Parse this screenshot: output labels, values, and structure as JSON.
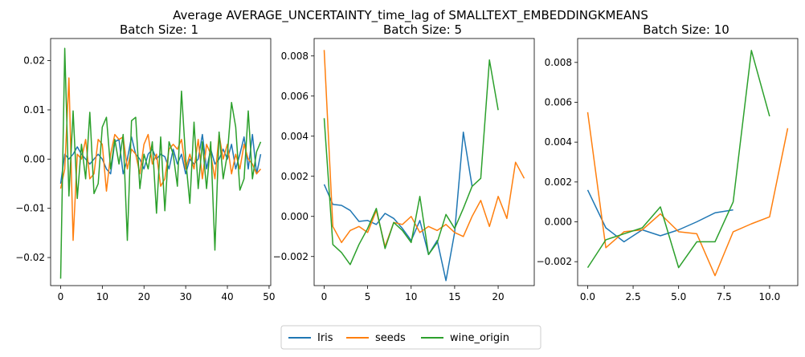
{
  "figure": {
    "suptitle": "Average AVERAGE_UNCERTAINTY_time_lag of SMALLTEXT_EMBEDDINGKMEANS"
  },
  "legend": {
    "placement": "bottom-center",
    "entries": [
      {
        "name": "Iris",
        "color": "#1f77b4"
      },
      {
        "name": "seeds",
        "color": "#ff7f0e"
      },
      {
        "name": "wine_origin",
        "color": "#2ca02c"
      }
    ]
  },
  "chart_data": [
    {
      "type": "line",
      "title": "Batch Size: 1",
      "xlabel": "",
      "ylabel": "",
      "xlim": [
        -2.4,
        50.4
      ],
      "ylim": [
        -0.0257,
        0.0245
      ],
      "xticks": [
        0,
        10,
        20,
        30,
        40,
        50
      ],
      "yticks": [
        -0.02,
        -0.01,
        0.0,
        0.01,
        0.02
      ],
      "xtick_labels": [
        "0",
        "10",
        "20",
        "30",
        "40",
        "50"
      ],
      "ytick_labels": [
        "−0.02",
        "−0.01",
        "0.00",
        "0.01",
        "0.02"
      ],
      "grid": false,
      "series": [
        {
          "name": "Iris",
          "color": "#1f77b4",
          "x": [
            0,
            1,
            2,
            3,
            4,
            5,
            6,
            7,
            8,
            9,
            10,
            11,
            12,
            13,
            14,
            15,
            16,
            17,
            18,
            19,
            20,
            21,
            22,
            23,
            24,
            25,
            26,
            27,
            28,
            29,
            30,
            31,
            32,
            33,
            34,
            35,
            36,
            37,
            38,
            39,
            40,
            41,
            42,
            43,
            44,
            45,
            46,
            47,
            48
          ],
          "values": [
            -0.005,
            0.001,
            0.0,
            0.001,
            0.0025,
            0.001,
            0.0,
            -0.001,
            0.0,
            0.001,
            0.0,
            -0.002,
            -0.003,
            0.0035,
            0.004,
            -0.003,
            0.0,
            0.0045,
            0.001,
            0.0,
            -0.002,
            0.001,
            0.002,
            0.0,
            0.001,
            0.0005,
            -0.002,
            0.002,
            -0.001,
            0.001,
            -0.003,
            0.0,
            -0.001,
            0.0,
            0.005,
            -0.002,
            0.002,
            -0.001,
            0.0,
            0.002,
            0.0,
            0.003,
            -0.002,
            0.001,
            0.0045,
            -0.002,
            0.005,
            -0.003,
            0.001
          ]
        },
        {
          "name": "seeds",
          "color": "#ff7f0e",
          "x": [
            0,
            1,
            2,
            3,
            4,
            5,
            6,
            7,
            8,
            9,
            10,
            11,
            12,
            13,
            14,
            15,
            16,
            17,
            18,
            19,
            20,
            21,
            22,
            23,
            24,
            25,
            26,
            27,
            28,
            29,
            30,
            31,
            32,
            33,
            34,
            35,
            36,
            37,
            38,
            39,
            40,
            41,
            42,
            43,
            44,
            45,
            46,
            47,
            48
          ],
          "values": [
            -0.006,
            -0.002,
            0.0165,
            -0.0165,
            0.001,
            0.0,
            0.004,
            -0.004,
            -0.003,
            0.004,
            0.003,
            -0.0065,
            0.001,
            0.005,
            0.004,
            0.0045,
            -0.002,
            0.002,
            0.001,
            -0.003,
            0.003,
            0.005,
            -0.001,
            0.001,
            -0.0055,
            -0.004,
            0.002,
            0.003,
            0.002,
            0.004,
            -0.002,
            0.001,
            -0.002,
            0.004,
            -0.004,
            0.003,
            0.001,
            -0.004,
            0.005,
            0.0,
            0.003,
            -0.003,
            0.001,
            -0.002,
            0.003,
            0.0,
            -0.001,
            -0.003,
            -0.002
          ]
        },
        {
          "name": "wine_origin",
          "color": "#2ca02c",
          "x": [
            0,
            1,
            2,
            3,
            4,
            5,
            6,
            7,
            8,
            9,
            10,
            11,
            12,
            13,
            14,
            15,
            16,
            17,
            18,
            19,
            20,
            21,
            22,
            23,
            24,
            25,
            26,
            27,
            28,
            29,
            30,
            31,
            32,
            33,
            34,
            35,
            36,
            37,
            38,
            39,
            40,
            41,
            42,
            43,
            44,
            45,
            46,
            47,
            48
          ],
          "values": [
            -0.0243,
            0.0225,
            -0.0075,
            0.0098,
            -0.008,
            0.003,
            -0.004,
            0.0095,
            -0.007,
            -0.005,
            0.0065,
            0.0085,
            -0.002,
            0.004,
            -0.001,
            0.005,
            -0.0165,
            0.0078,
            0.0085,
            -0.006,
            0.001,
            -0.002,
            0.0035,
            -0.011,
            0.0045,
            -0.0105,
            0.0035,
            0.001,
            -0.0055,
            0.0138,
            0.0,
            -0.009,
            0.0075,
            -0.006,
            0.0035,
            -0.006,
            0.0035,
            -0.0185,
            0.0055,
            -0.004,
            0.001,
            0.0115,
            0.0065,
            -0.0063,
            -0.004,
            0.0098,
            -0.004,
            0.0015,
            0.0035
          ]
        }
      ]
    },
    {
      "type": "line",
      "title": "Batch Size: 5",
      "xlabel": "",
      "ylabel": "",
      "xlim": [
        -1.15,
        24.15
      ],
      "ylim": [
        -0.00345,
        0.00887
      ],
      "xticks": [
        0,
        5,
        10,
        15,
        20
      ],
      "yticks": [
        -0.002,
        0.0,
        0.002,
        0.004,
        0.006,
        0.008
      ],
      "xtick_labels": [
        "0",
        "5",
        "10",
        "15",
        "20"
      ],
      "ytick_labels": [
        "−0.002",
        "0.000",
        "0.002",
        "0.004",
        "0.006",
        "0.008"
      ],
      "grid": false,
      "series": [
        {
          "name": "Iris",
          "color": "#1f77b4",
          "x": [
            0,
            1,
            2,
            3,
            4,
            5,
            6,
            7,
            8,
            9,
            10,
            11,
            12,
            13,
            14,
            15,
            16,
            17
          ],
          "values": [
            0.0016,
            0.0006,
            0.00055,
            0.0003,
            -0.00025,
            -0.0002,
            -0.0004,
            0.00015,
            -0.0001,
            -0.0006,
            -0.0012,
            -0.0002,
            -0.0019,
            -0.0012,
            -0.0032,
            -0.0008,
            0.0042,
            0.0015
          ]
        },
        {
          "name": "seeds",
          "color": "#ff7f0e",
          "x": [
            0,
            1,
            2,
            3,
            4,
            5,
            6,
            7,
            8,
            9,
            10,
            11,
            12,
            13,
            14,
            15,
            16,
            17,
            18,
            19,
            20,
            21,
            22,
            23
          ],
          "values": [
            0.0083,
            -0.0005,
            -0.0013,
            -0.0007,
            -0.0005,
            -0.0008,
            0.0003,
            -0.0015,
            -0.0003,
            -0.0004,
            0.0,
            -0.0008,
            -0.0005,
            -0.0007,
            -0.0004,
            -0.0008,
            -0.001,
            0.0,
            0.0008,
            -0.0005,
            0.001,
            -0.0001,
            0.0027,
            0.0019
          ]
        },
        {
          "name": "wine_origin",
          "color": "#2ca02c",
          "x": [
            0,
            1,
            2,
            3,
            4,
            5,
            6,
            7,
            8,
            9,
            10,
            11,
            12,
            13,
            14,
            15,
            16,
            17,
            18,
            19,
            20
          ],
          "values": [
            0.0049,
            -0.0014,
            -0.0018,
            -0.0024,
            -0.0014,
            -0.0006,
            0.0004,
            -0.0016,
            -0.0003,
            -0.0007,
            -0.0013,
            0.001,
            -0.0019,
            -0.0013,
            0.0001,
            -0.0006,
            0.0004,
            0.0015,
            0.0019,
            0.0078,
            0.0053
          ]
        }
      ]
    },
    {
      "type": "line",
      "title": "Batch Size: 10",
      "xlabel": "",
      "ylabel": "",
      "xlim": [
        -0.55,
        11.55
      ],
      "ylim": [
        -0.0032,
        0.0092
      ],
      "xticks": [
        0,
        2.5,
        5.0,
        7.5,
        10.0
      ],
      "yticks": [
        -0.002,
        0.0,
        0.002,
        0.004,
        0.006,
        0.008
      ],
      "xtick_labels": [
        "0.0",
        "2.5",
        "5.0",
        "7.5",
        "10.0"
      ],
      "ytick_labels": [
        "−0.002",
        "0.000",
        "0.002",
        "0.004",
        "0.006",
        "0.008"
      ],
      "grid": false,
      "series": [
        {
          "name": "Iris",
          "color": "#1f77b4",
          "x": [
            0,
            1,
            2,
            3,
            4,
            5,
            6,
            7,
            8
          ],
          "values": [
            0.0016,
            -0.0003,
            -0.001,
            -0.0004,
            -0.0007,
            -0.0004,
            0.0,
            0.00045,
            0.0006
          ]
        },
        {
          "name": "seeds",
          "color": "#ff7f0e",
          "x": [
            0,
            1,
            2,
            3,
            4,
            5,
            6,
            7,
            8,
            9,
            10,
            11
          ],
          "values": [
            0.0055,
            -0.0013,
            -0.0005,
            -0.0004,
            0.0004,
            -0.0005,
            -0.0006,
            -0.0027,
            -0.0005,
            -0.0001,
            0.00025,
            0.0047
          ]
        },
        {
          "name": "wine_origin",
          "color": "#2ca02c",
          "x": [
            0,
            1,
            2,
            3,
            4,
            5,
            6,
            7,
            8,
            9,
            10
          ],
          "values": [
            -0.0023,
            -0.0009,
            -0.0006,
            -0.0003,
            0.00075,
            -0.0023,
            -0.001,
            -0.001,
            0.001,
            0.0086,
            0.0053
          ]
        }
      ]
    }
  ]
}
